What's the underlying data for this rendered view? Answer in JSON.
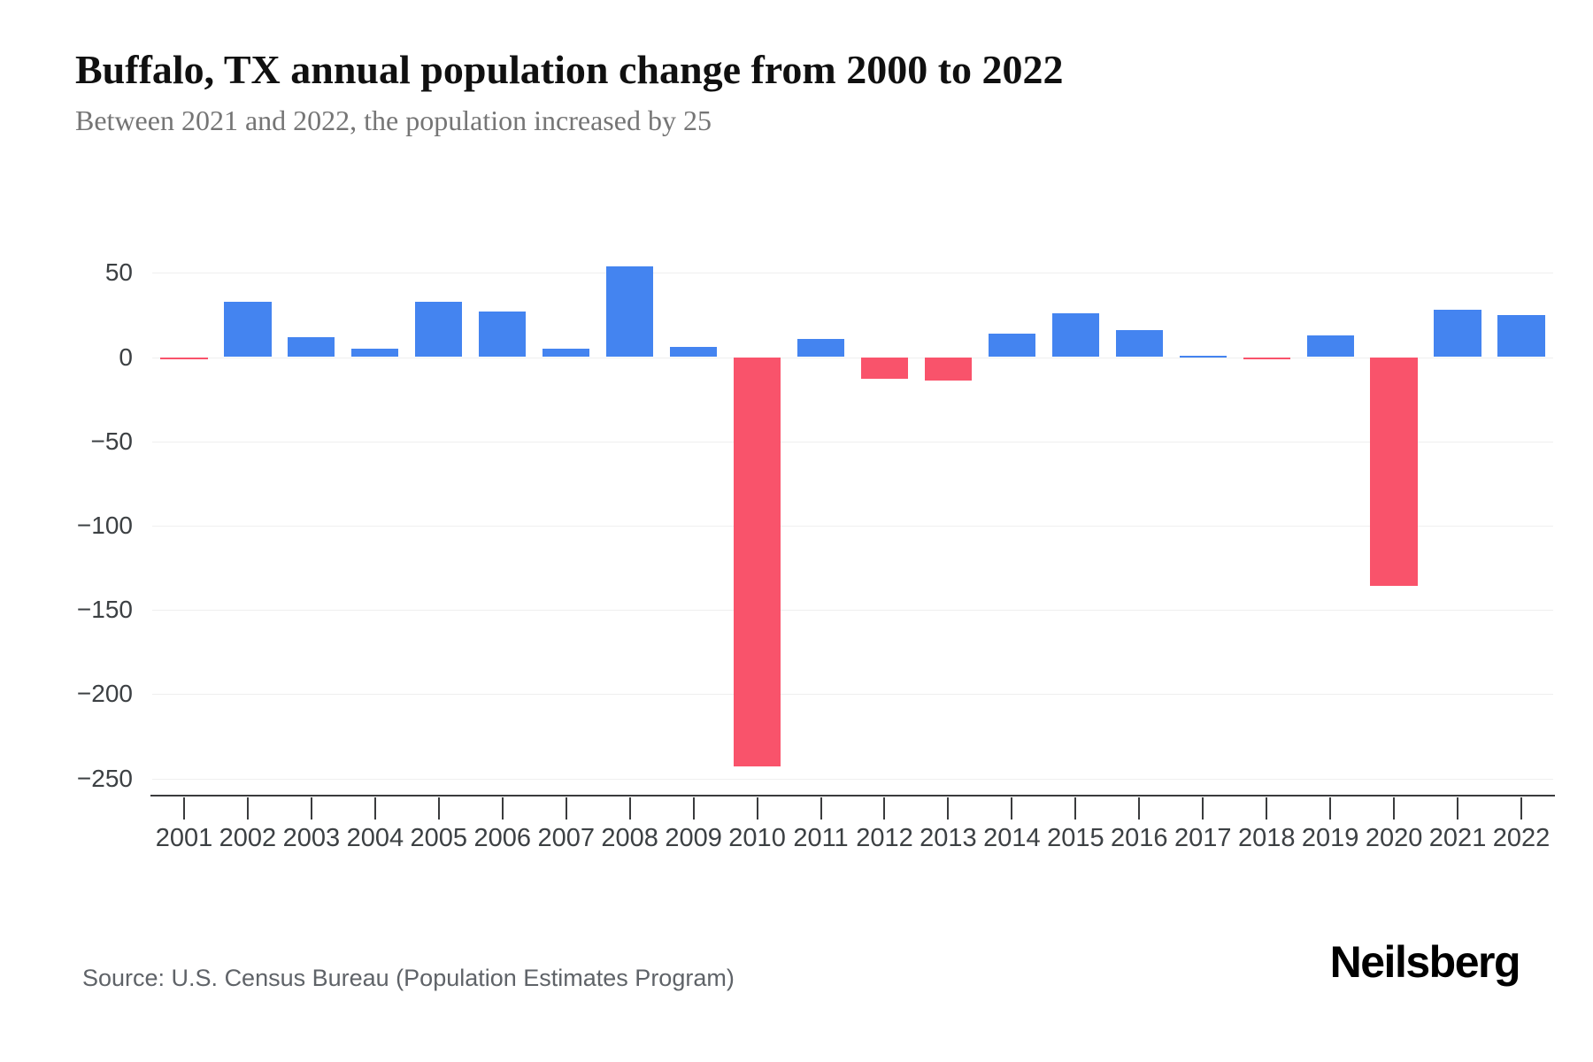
{
  "header": {
    "title": "Buffalo, TX annual population change from 2000 to 2022",
    "subtitle": "Between 2021 and 2022, the population increased by 25"
  },
  "footer": {
    "source": "Source: U.S. Census Bureau (Population Estimates Program)",
    "brand": "Neilsberg"
  },
  "chart_data": {
    "type": "bar",
    "title": "Buffalo, TX annual population change from 2000 to 2022",
    "subtitle": "Between 2021 and 2022, the population increased by 25",
    "xlabel": "",
    "ylabel": "",
    "categories": [
      "2001",
      "2002",
      "2003",
      "2004",
      "2005",
      "2006",
      "2007",
      "2008",
      "2009",
      "2010",
      "2011",
      "2012",
      "2013",
      "2014",
      "2015",
      "2016",
      "2017",
      "2018",
      "2019",
      "2020",
      "2021",
      "2022"
    ],
    "values": [
      -1,
      33,
      12,
      5,
      33,
      27,
      5,
      54,
      6,
      -243,
      11,
      -13,
      -14,
      14,
      26,
      16,
      1,
      -1,
      13,
      -136,
      28,
      25
    ],
    "yticks": [
      50,
      0,
      -50,
      -100,
      -150,
      -200,
      -250
    ],
    "ylim": [
      -260,
      60
    ],
    "grid": "horizontal",
    "legend": "none",
    "colors": {
      "positive": "#4484F0",
      "negative": "#F9536B"
    }
  }
}
